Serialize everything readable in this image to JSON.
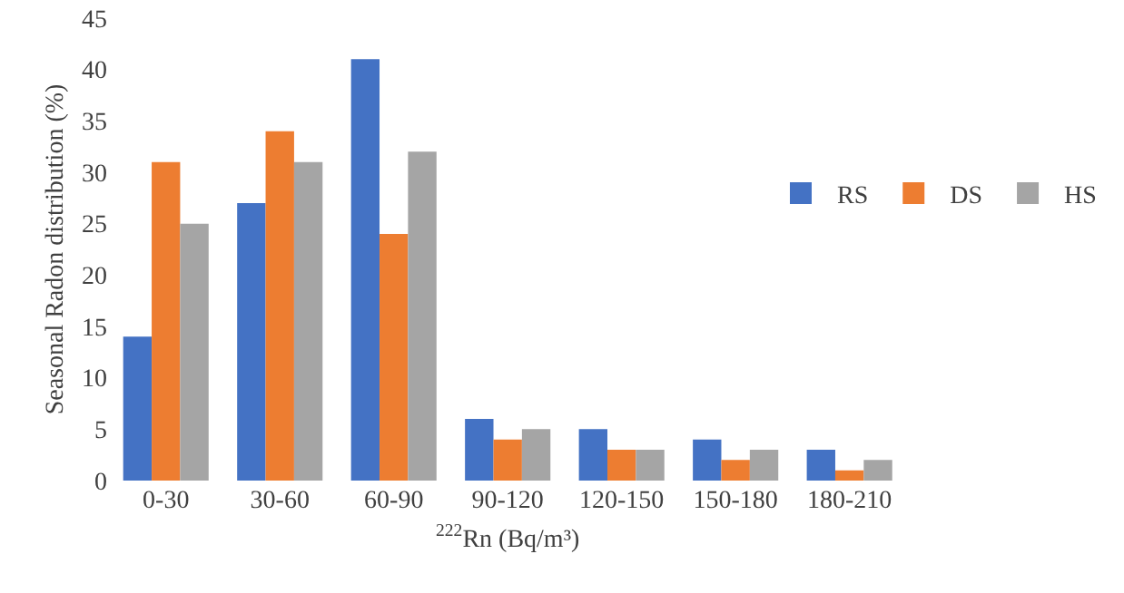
{
  "chart_data": {
    "type": "bar",
    "xlabel": "$^{222}$Rn (Bq/m³)",
    "ylabel": "Seasonal Radon distribution (%)",
    "categories": [
      "0-30",
      "30-60",
      "60-90",
      "90-120",
      "120-150",
      "150-180",
      "180-210"
    ],
    "series": [
      {
        "name": "RS",
        "color": "#4472c4",
        "values": [
          14,
          27,
          41,
          6,
          5,
          4,
          3
        ]
      },
      {
        "name": "DS",
        "color": "#ed7d31",
        "values": [
          31,
          34,
          24,
          4,
          3,
          2,
          1
        ]
      },
      {
        "name": "HS",
        "color": "#a5a5a5",
        "values": [
          25,
          31,
          32,
          5,
          3,
          3,
          2
        ]
      }
    ],
    "ylim": [
      0,
      45
    ],
    "yticks": [
      0,
      5,
      10,
      15,
      20,
      25,
      30,
      35,
      40,
      45
    ],
    "grid": false,
    "legend": "right"
  }
}
